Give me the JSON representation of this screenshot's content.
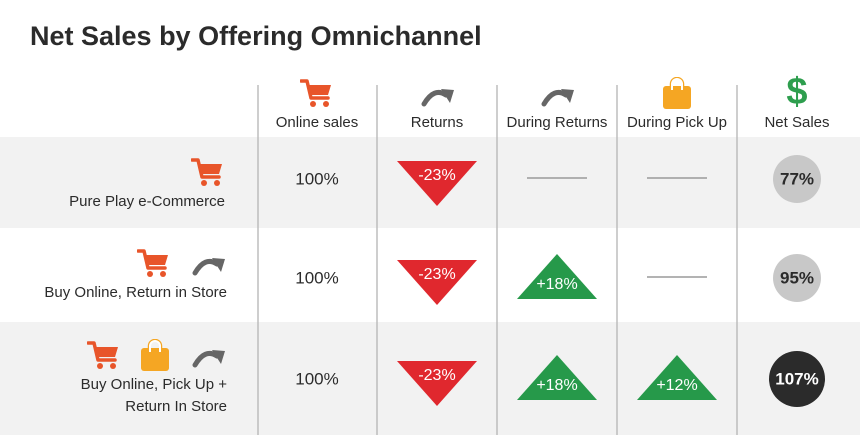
{
  "title": "Net Sales by Offering Omnichannel",
  "net_sales_icon": "$",
  "columns": [
    "Online sales",
    "Returns",
    "During Returns",
    "During Pick Up",
    "Net Sales"
  ],
  "rows": [
    {
      "label": [
        "Pure Play e-Commerce"
      ],
      "cells": [
        "100%",
        "-23%",
        null,
        null,
        "77%"
      ]
    },
    {
      "label": [
        "Buy Online, Return in Store"
      ],
      "cells": [
        "100%",
        "-23%",
        "+18%",
        null,
        "95%"
      ]
    },
    {
      "label": [
        "Buy Online, Pick Up +",
        "Return In Store"
      ],
      "cells": [
        "100%",
        "-23%",
        "+18%",
        "+12%",
        "107%"
      ]
    }
  ]
}
